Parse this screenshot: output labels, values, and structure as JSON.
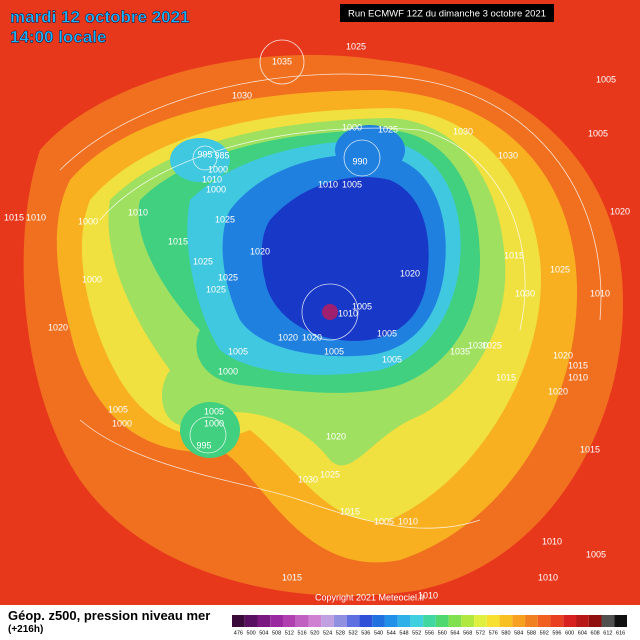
{
  "header": {
    "date": "mardi 12 octobre 2021",
    "time": "14:00 locale",
    "run": "Run ECMWF 12Z du dimanche 3 octobre 2021"
  },
  "map": {
    "isobar_labels": [
      "1035",
      "1025",
      "1030",
      "1005",
      "1005",
      "1030",
      "1000",
      "1025",
      "995",
      "985",
      "990",
      "1030",
      "1000",
      "1010",
      "1000",
      "1010",
      "1005",
      "1015",
      "1010",
      "1000",
      "1010",
      "1025",
      "1020",
      "1015",
      "1020",
      "1015",
      "1025",
      "1025",
      "1000",
      "1025",
      "1020",
      "1010",
      "1025",
      "1030",
      "1005",
      "1010",
      "1020",
      "1020",
      "1020",
      "1005",
      "1035",
      "1030",
      "1025",
      "1005",
      "1005",
      "1005",
      "1020",
      "1015",
      "1010",
      "1000",
      "1015",
      "1020",
      "1005",
      "1000",
      "1005",
      "1000",
      "995",
      "1020",
      "1015",
      "1030",
      "1025",
      "1015",
      "1005",
      "1010",
      "1010",
      "1005",
      "1010",
      "1015",
      "1010"
    ],
    "copyright": "Copyright 2021 Meteociel.fr"
  },
  "footer": {
    "title": "Géop. z500, pression niveau mer",
    "lead": "(+216h)",
    "scale": {
      "labels": [
        "476",
        "500",
        "504",
        "508",
        "512",
        "516",
        "520",
        "524",
        "528",
        "532",
        "536",
        "540",
        "544",
        "548",
        "552",
        "556",
        "560",
        "564",
        "568",
        "572",
        "576",
        "580",
        "584",
        "588",
        "592",
        "596",
        "600",
        "604",
        "608",
        "612",
        "616"
      ],
      "colors": [
        "#3a0a3a",
        "#5a1060",
        "#7a1a80",
        "#9a2aa0",
        "#b040b0",
        "#c060c0",
        "#d080d0",
        "#c0a0e0",
        "#9090e0",
        "#6070e0",
        "#3050d8",
        "#2070e0",
        "#2090e8",
        "#30b0e8",
        "#40d0e0",
        "#40d8a0",
        "#50d870",
        "#80e050",
        "#b0e840",
        "#e0f040",
        "#f8e030",
        "#f8c020",
        "#f8a020",
        "#f08020",
        "#f06020",
        "#e84020",
        "#d82020",
        "#b81818",
        "#901010",
        "#505050",
        "#101010"
      ]
    }
  }
}
